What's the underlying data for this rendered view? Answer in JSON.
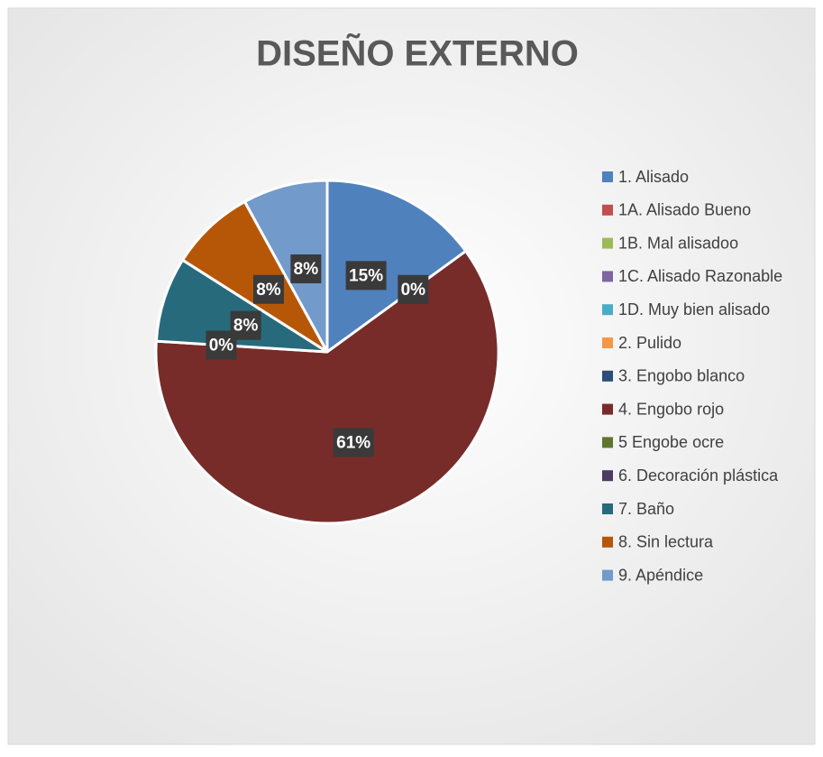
{
  "chart_data": {
    "type": "pie",
    "title": "DISEÑO EXTERNO",
    "categories": [
      "1. Alisado",
      "1A. Alisado Bueno",
      "1B. Mal alisadoo",
      "1C. Alisado Razonable",
      "1D. Muy bien alisado",
      "2. Pulido",
      "3. Engobo blanco",
      "4. Engobo rojo",
      "5 Engobe ocre",
      "6. Decoración plástica",
      "7. Baño",
      "8. Sin lectura",
      "9. Apéndice"
    ],
    "values": [
      15,
      0,
      0,
      0,
      0,
      0,
      0,
      61,
      0,
      0,
      8,
      8,
      8
    ],
    "value_labels": [
      "15%",
      null,
      null,
      null,
      null,
      null,
      "0%",
      "61%",
      null,
      "0%",
      "8%",
      "8%",
      "8%"
    ],
    "colors": [
      "#4F81BD",
      "#C0504D",
      "#9BBB59",
      "#8064A2",
      "#4BACC6",
      "#F79646",
      "#2C4D75",
      "#772C2A",
      "#5F7530",
      "#4D3B62",
      "#276A7C",
      "#B65708",
      "#729ACA"
    ],
    "legend": "right"
  }
}
